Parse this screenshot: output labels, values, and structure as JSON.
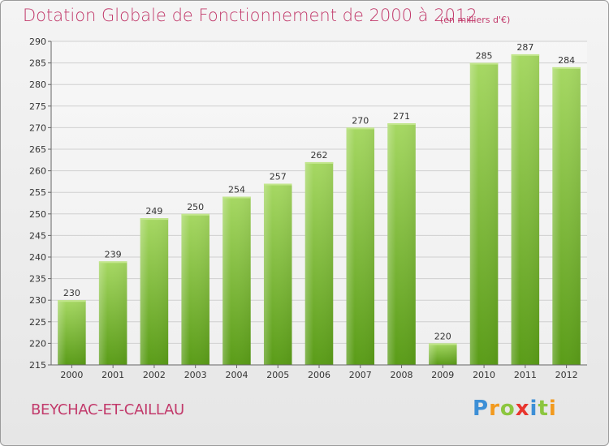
{
  "chart_data": {
    "type": "bar",
    "title": "Dotation Globale de Fonctionnement de 2000 à 2012",
    "subtitle": "(en milliers d'€)",
    "categories": [
      "2000",
      "2001",
      "2002",
      "2003",
      "2004",
      "2005",
      "2006",
      "2007",
      "2008",
      "2009",
      "2010",
      "2011",
      "2012"
    ],
    "values": [
      230,
      239,
      249,
      250,
      254,
      257,
      262,
      270,
      271,
      220,
      285,
      287,
      284
    ],
    "ylim": [
      215,
      290
    ],
    "yticks": [
      215,
      220,
      225,
      230,
      235,
      240,
      245,
      250,
      255,
      260,
      265,
      270,
      275,
      280,
      285,
      290
    ],
    "grid": true,
    "bar_color": "#7bbf2e",
    "legend": "none"
  },
  "commune": "BEYCHAC-ET-CAILLAU",
  "logo": {
    "letters": [
      "P",
      "r",
      "o",
      "x",
      "i",
      "t",
      "i"
    ]
  },
  "colors": {
    "title": "#c23a6b",
    "grid": "#d0d0d0",
    "bar_top": "#a4d65e",
    "bar_bottom": "#5c9e1b"
  }
}
